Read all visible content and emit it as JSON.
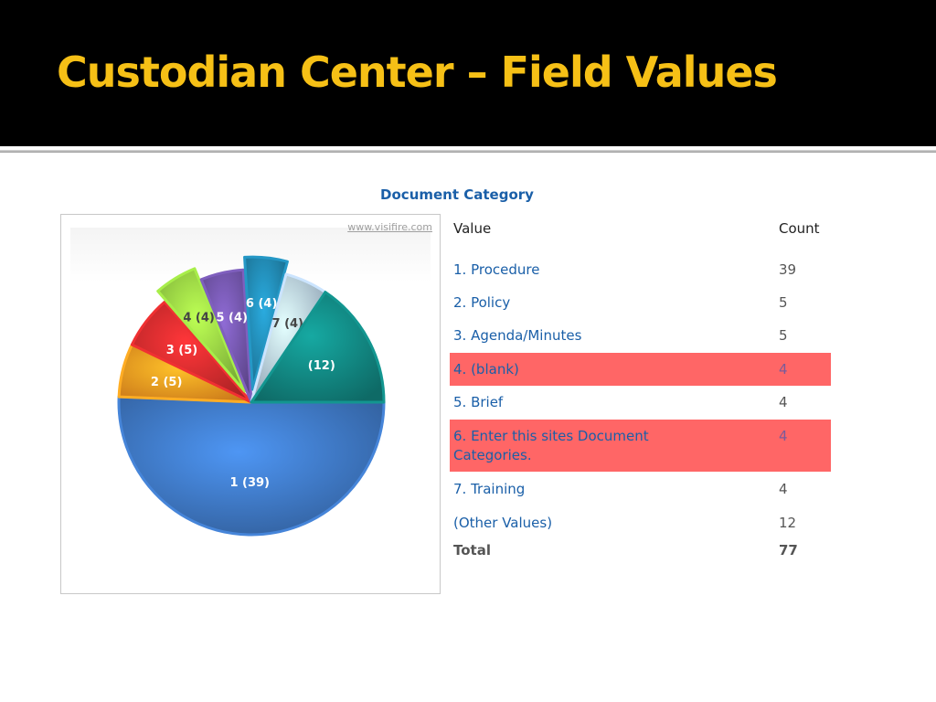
{
  "slide": {
    "title": "Custodian Center – Field Values"
  },
  "panel": {
    "title": "Document Category",
    "watermark": "www.visifire.com"
  },
  "table": {
    "header_value": "Value",
    "header_count": "Count",
    "rows": [
      {
        "value": "1. Procedure",
        "count": "39",
        "highlighted": false
      },
      {
        "value": "2. Policy",
        "count": "5",
        "highlighted": false
      },
      {
        "value": "3. Agenda/Minutes",
        "count": "5",
        "highlighted": false
      },
      {
        "value": "4. (blank)",
        "count": "4",
        "highlighted": true
      },
      {
        "value": "5. Brief",
        "count": "4",
        "highlighted": false
      },
      {
        "value": "6. Enter this sites Document Categories.",
        "count": "4",
        "highlighted": true
      },
      {
        "value": "7. Training",
        "count": "4",
        "highlighted": false
      },
      {
        "value": "(Other Values)",
        "count": "12",
        "highlighted": false
      }
    ],
    "total_label": "Total",
    "total_value": "77",
    "highlight_color": "#ff6666"
  },
  "chart_data": {
    "type": "pie",
    "title": "Document Category",
    "slices": [
      {
        "label": "1 (39)",
        "value": 39,
        "color": "#3a6fb5"
      },
      {
        "label": "2 (5)",
        "value": 5,
        "color": "#f0901e"
      },
      {
        "label": "3 (5)",
        "value": 5,
        "color": "#c8282a"
      },
      {
        "label": "4 (4)",
        "value": 4,
        "color": "#8cc63e",
        "exploded": true
      },
      {
        "label": "5 (4)",
        "value": 4,
        "color": "#6a4f9e"
      },
      {
        "label": "6 (4)",
        "value": 4,
        "color": "#1f7fa5",
        "exploded": true
      },
      {
        "label": "7 (4)",
        "value": 4,
        "color": "#a9bed4"
      },
      {
        "label": "(12)",
        "value": 12,
        "color": "#107d78"
      }
    ]
  }
}
